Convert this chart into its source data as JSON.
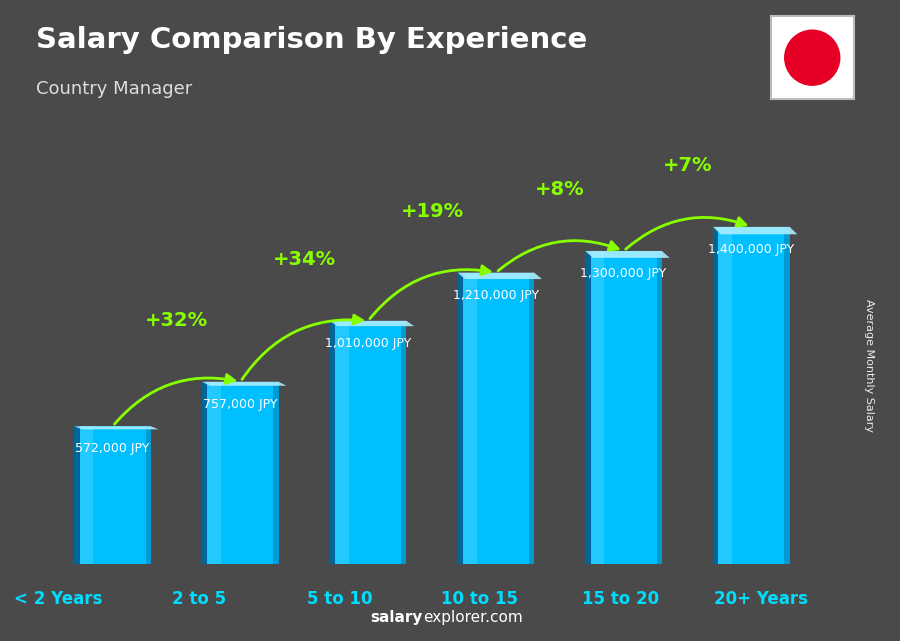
{
  "title": "Salary Comparison By Experience",
  "subtitle": "Country Manager",
  "categories": [
    "< 2 Years",
    "2 to 5",
    "5 to 10",
    "10 to 15",
    "15 to 20",
    "20+ Years"
  ],
  "values": [
    572000,
    757000,
    1010000,
    1210000,
    1300000,
    1400000
  ],
  "value_labels": [
    "572,000 JPY",
    "757,000 JPY",
    "1,010,000 JPY",
    "1,210,000 JPY",
    "1,300,000 JPY",
    "1,400,000 JPY"
  ],
  "pct_changes": [
    "+32%",
    "+34%",
    "+19%",
    "+8%",
    "+7%"
  ],
  "bar_color_main": "#00bfff",
  "bar_color_light": "#40d4ff",
  "bar_color_dark": "#0077aa",
  "bar_color_left": "#005588",
  "bar_top_color": "#aaeeff",
  "bg_color": "#4a4a4a",
  "title_color": "#ffffff",
  "subtitle_color": "#dddddd",
  "label_color": "#ffffff",
  "pct_color": "#88ff00",
  "xticklabel_color": "#00ddff",
  "watermark_salary": "salary",
  "watermark_rest": "explorer.com",
  "ylabel_text": "Average Monthly Salary",
  "ylim_max": 1650000,
  "bar_width": 0.6,
  "flag_color": "#e60026"
}
